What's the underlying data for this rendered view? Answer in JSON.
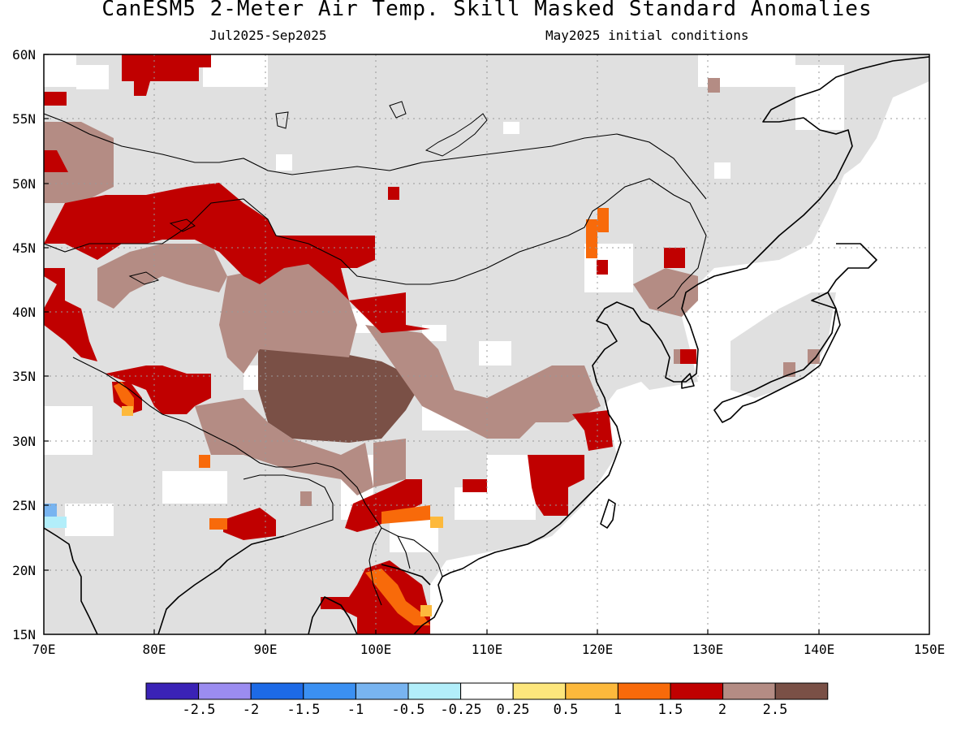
{
  "title": "CanESM5 2-Meter Air Temp. Skill Masked Standard Anomalies",
  "subtitle_left": "Jul2025-Sep2025",
  "subtitle_right": "May2025 initial conditions",
  "map": {
    "lon_range": [
      70,
      150
    ],
    "lat_range": [
      15,
      60
    ],
    "lat_labels": [
      "60N",
      "55N",
      "50N",
      "45N",
      "40N",
      "35N",
      "30N",
      "25N",
      "20N",
      "15N"
    ],
    "lon_labels": [
      "70E",
      "80E",
      "90E",
      "100E",
      "110E",
      "120E",
      "130E",
      "140E",
      "150E"
    ],
    "grid": "dotted",
    "masked_color": "#e0e0e0",
    "ocean_color": "#ffffff"
  },
  "colorbar": {
    "colors": [
      "#3a22b6",
      "#9b8cf0",
      "#1d6ae6",
      "#3b90f2",
      "#78b4f0",
      "#b2eefa",
      "#ffffff",
      "#fde67c",
      "#fdb93c",
      "#f86a0a",
      "#c00000",
      "#b48c84",
      "#7a5046"
    ],
    "labels": [
      "-2.5",
      "-2",
      "-1.5",
      "-1",
      "-0.5",
      "-0.25",
      "0.25",
      "0.5",
      "1",
      "1.5",
      "2",
      "2.5"
    ]
  }
}
